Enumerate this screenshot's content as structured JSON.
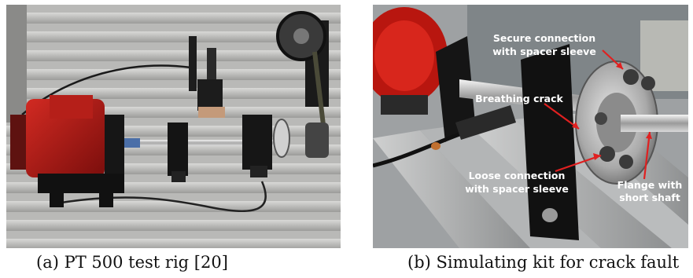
{
  "figure": {
    "panel_a": {
      "caption": "(a) PT 500 test rig [20]"
    },
    "panel_b": {
      "caption": "(b) Simulating kit for crack fault",
      "annotations": {
        "secure_line1": "Secure connection",
        "secure_line2": "with spacer sleeve",
        "breathing": "Breathing crack",
        "loose_line1": "Loose connection",
        "loose_line2": "with spacer sleeve",
        "flange_line1": "Flange with",
        "flange_line2": "short shaft"
      },
      "arrow_color": "#e02020"
    }
  }
}
